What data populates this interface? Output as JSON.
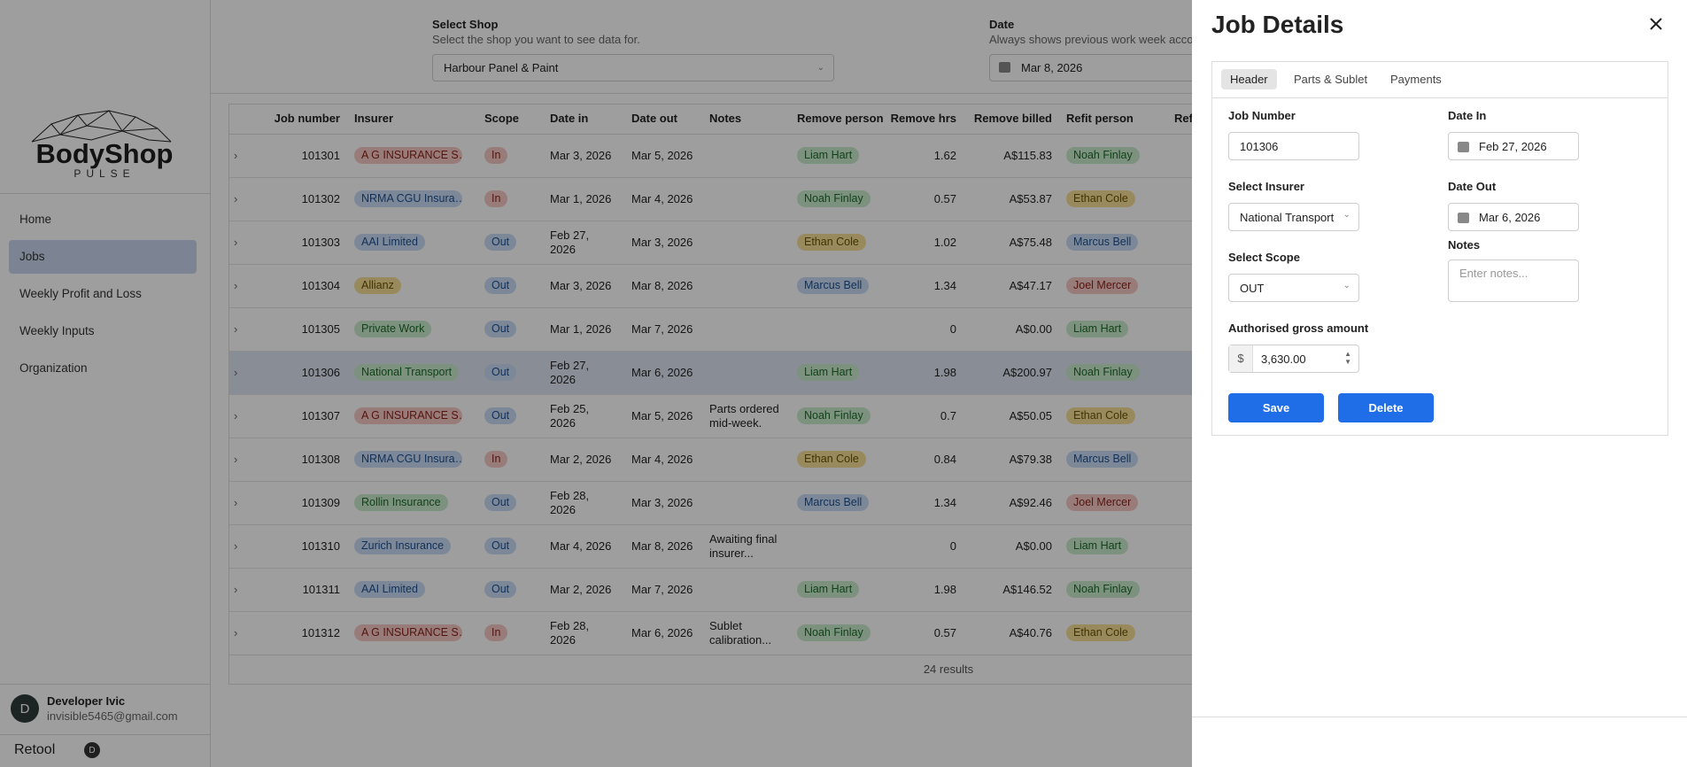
{
  "sidebar": {
    "logo": {
      "name": "BodyShop",
      "tagline": "PULSE"
    },
    "nav": [
      "Home",
      "Jobs",
      "Weekly Profit and Loss",
      "Weekly Inputs",
      "Organization"
    ],
    "active_nav": 1,
    "user": {
      "initial": "D",
      "name": "Developer Ivic",
      "email": "invisible5465@gmail.com"
    },
    "footer": {
      "brand": "Retool",
      "initial": "D"
    }
  },
  "filters": {
    "shop": {
      "label": "Select Shop",
      "hint": "Select the shop you want to see data for.",
      "value": "Harbour Panel & Paint"
    },
    "date": {
      "label": "Date",
      "hint": "Always shows previous work week acco",
      "value": "Mar 8, 2026"
    }
  },
  "table": {
    "columns": [
      "Job number",
      "Insurer",
      "Scope",
      "Date in",
      "Date out",
      "Notes",
      "Remove person",
      "Remove hrs",
      "Remove billed",
      "Refit person",
      "Ref"
    ],
    "selected_row": 5,
    "rows": [
      {
        "job": "101301",
        "insurer": {
          "text": "A G INSURANCE S…",
          "color": "red"
        },
        "scope": {
          "text": "In",
          "color": "red"
        },
        "date_in": "Mar 3, 2026",
        "date_out": "Mar 5, 2026",
        "remove_person": {
          "text": "Liam Hart",
          "color": "green"
        },
        "remove_hrs": "1.62",
        "remove_billed": "A$115.83",
        "refit_person": {
          "text": "Noah Finlay",
          "color": "green"
        }
      },
      {
        "job": "101302",
        "insurer": {
          "text": "NRMA CGU Insura…",
          "color": "blue"
        },
        "scope": {
          "text": "In",
          "color": "red"
        },
        "date_in": "Mar 1, 2026",
        "date_out": "Mar 4, 2026",
        "remove_person": {
          "text": "Noah Finlay",
          "color": "green"
        },
        "remove_hrs": "0.57",
        "remove_billed": "A$53.87",
        "refit_person": {
          "text": "Ethan Cole",
          "color": "yellow"
        }
      },
      {
        "job": "101303",
        "insurer": {
          "text": "AAI Limited",
          "color": "blue"
        },
        "scope": {
          "text": "Out",
          "color": "blue"
        },
        "date_in": "Feb 27, 2026",
        "date_out": "Mar 3, 2026",
        "remove_person": {
          "text": "Ethan Cole",
          "color": "yellow"
        },
        "remove_hrs": "1.02",
        "remove_billed": "A$75.48",
        "refit_person": {
          "text": "Marcus Bell",
          "color": "blue"
        }
      },
      {
        "job": "101304",
        "insurer": {
          "text": "Allianz",
          "color": "yellow"
        },
        "scope": {
          "text": "Out",
          "color": "blue"
        },
        "date_in": "Mar 3, 2026",
        "date_out": "Mar 8, 2026",
        "remove_person": {
          "text": "Marcus Bell",
          "color": "blue"
        },
        "remove_hrs": "1.34",
        "remove_billed": "A$47.17",
        "refit_person": {
          "text": "Joel Mercer",
          "color": "red"
        }
      },
      {
        "job": "101305",
        "insurer": {
          "text": "Private Work",
          "color": "green"
        },
        "scope": {
          "text": "Out",
          "color": "blue"
        },
        "date_in": "Mar 1, 2026",
        "date_out": "Mar 7, 2026",
        "remove_hrs": "0",
        "remove_billed": "A$0.00",
        "refit_person": {
          "text": "Liam Hart",
          "color": "green"
        }
      },
      {
        "job": "101306",
        "insurer": {
          "text": "National Transport",
          "color": "green"
        },
        "scope": {
          "text": "Out",
          "color": "blue"
        },
        "date_in": "Feb 27, 2026",
        "date_out": "Mar 6, 2026",
        "remove_person": {
          "text": "Liam Hart",
          "color": "green"
        },
        "remove_hrs": "1.98",
        "remove_billed": "A$200.97",
        "refit_person": {
          "text": "Noah Finlay",
          "color": "green"
        }
      },
      {
        "job": "101307",
        "insurer": {
          "text": "A G INSURANCE S…",
          "color": "red"
        },
        "scope": {
          "text": "Out",
          "color": "blue"
        },
        "date_in": "Feb 25, 2026",
        "date_out": "Mar 5, 2026",
        "notes": "Parts ordered mid-week.",
        "remove_person": {
          "text": "Noah Finlay",
          "color": "green"
        },
        "remove_hrs": "0.7",
        "remove_billed": "A$50.05",
        "refit_person": {
          "text": "Ethan Cole",
          "color": "yellow"
        }
      },
      {
        "job": "101308",
        "insurer": {
          "text": "NRMA CGU Insura…",
          "color": "blue"
        },
        "scope": {
          "text": "In",
          "color": "red"
        },
        "date_in": "Mar 2, 2026",
        "date_out": "Mar 4, 2026",
        "remove_person": {
          "text": "Ethan Cole",
          "color": "yellow"
        },
        "remove_hrs": "0.84",
        "remove_billed": "A$79.38",
        "refit_person": {
          "text": "Marcus Bell",
          "color": "blue"
        }
      },
      {
        "job": "101309",
        "insurer": {
          "text": "Rollin Insurance",
          "color": "green"
        },
        "scope": {
          "text": "Out",
          "color": "blue"
        },
        "date_in": "Feb 28, 2026",
        "date_out": "Mar 3, 2026",
        "remove_person": {
          "text": "Marcus Bell",
          "color": "blue"
        },
        "remove_hrs": "1.34",
        "remove_billed": "A$92.46",
        "refit_person": {
          "text": "Joel Mercer",
          "color": "red"
        }
      },
      {
        "job": "101310",
        "insurer": {
          "text": "Zurich Insurance",
          "color": "blue"
        },
        "scope": {
          "text": "Out",
          "color": "blue"
        },
        "date_in": "Mar 4, 2026",
        "date_out": "Mar 8, 2026",
        "notes": "Awaiting final insurer...",
        "remove_hrs": "0",
        "remove_billed": "A$0.00",
        "refit_person": {
          "text": "Liam Hart",
          "color": "green"
        }
      },
      {
        "job": "101311",
        "insurer": {
          "text": "AAI Limited",
          "color": "blue"
        },
        "scope": {
          "text": "Out",
          "color": "blue"
        },
        "date_in": "Mar 2, 2026",
        "date_out": "Mar 7, 2026",
        "remove_person": {
          "text": "Liam Hart",
          "color": "green"
        },
        "remove_hrs": "1.98",
        "remove_billed": "A$146.52",
        "refit_person": {
          "text": "Noah Finlay",
          "color": "green"
        }
      },
      {
        "job": "101312",
        "insurer": {
          "text": "A G INSURANCE S…",
          "color": "red"
        },
        "scope": {
          "text": "In",
          "color": "red"
        },
        "date_in": "Feb 28, 2026",
        "date_out": "Mar 6, 2026",
        "notes": "Sublet calibration...",
        "remove_person": {
          "text": "Noah Finlay",
          "color": "green"
        },
        "remove_hrs": "0.57",
        "remove_billed": "A$40.76",
        "refit_person": {
          "text": "Ethan Cole",
          "color": "yellow"
        }
      }
    ],
    "footer": "24 results"
  },
  "panel": {
    "title": "Job Details",
    "tabs": [
      "Header",
      "Parts & Sublet",
      "Payments"
    ],
    "active_tab": 0,
    "fields": {
      "job_number": {
        "label": "Job Number",
        "value": "101306"
      },
      "date_in": {
        "label": "Date In",
        "value": "Feb 27, 2026"
      },
      "insurer": {
        "label": "Select Insurer",
        "value": "National Transport"
      },
      "date_out": {
        "label": "Date Out",
        "value": "Mar 6, 2026"
      },
      "scope": {
        "label": "Select Scope",
        "value": "OUT"
      },
      "notes": {
        "label": "Notes",
        "placeholder": "Enter notes..."
      },
      "amount": {
        "label": "Authorised gross amount",
        "prefix": "$",
        "value": "3,630.00"
      }
    },
    "buttons": [
      "Save",
      "Delete"
    ]
  }
}
